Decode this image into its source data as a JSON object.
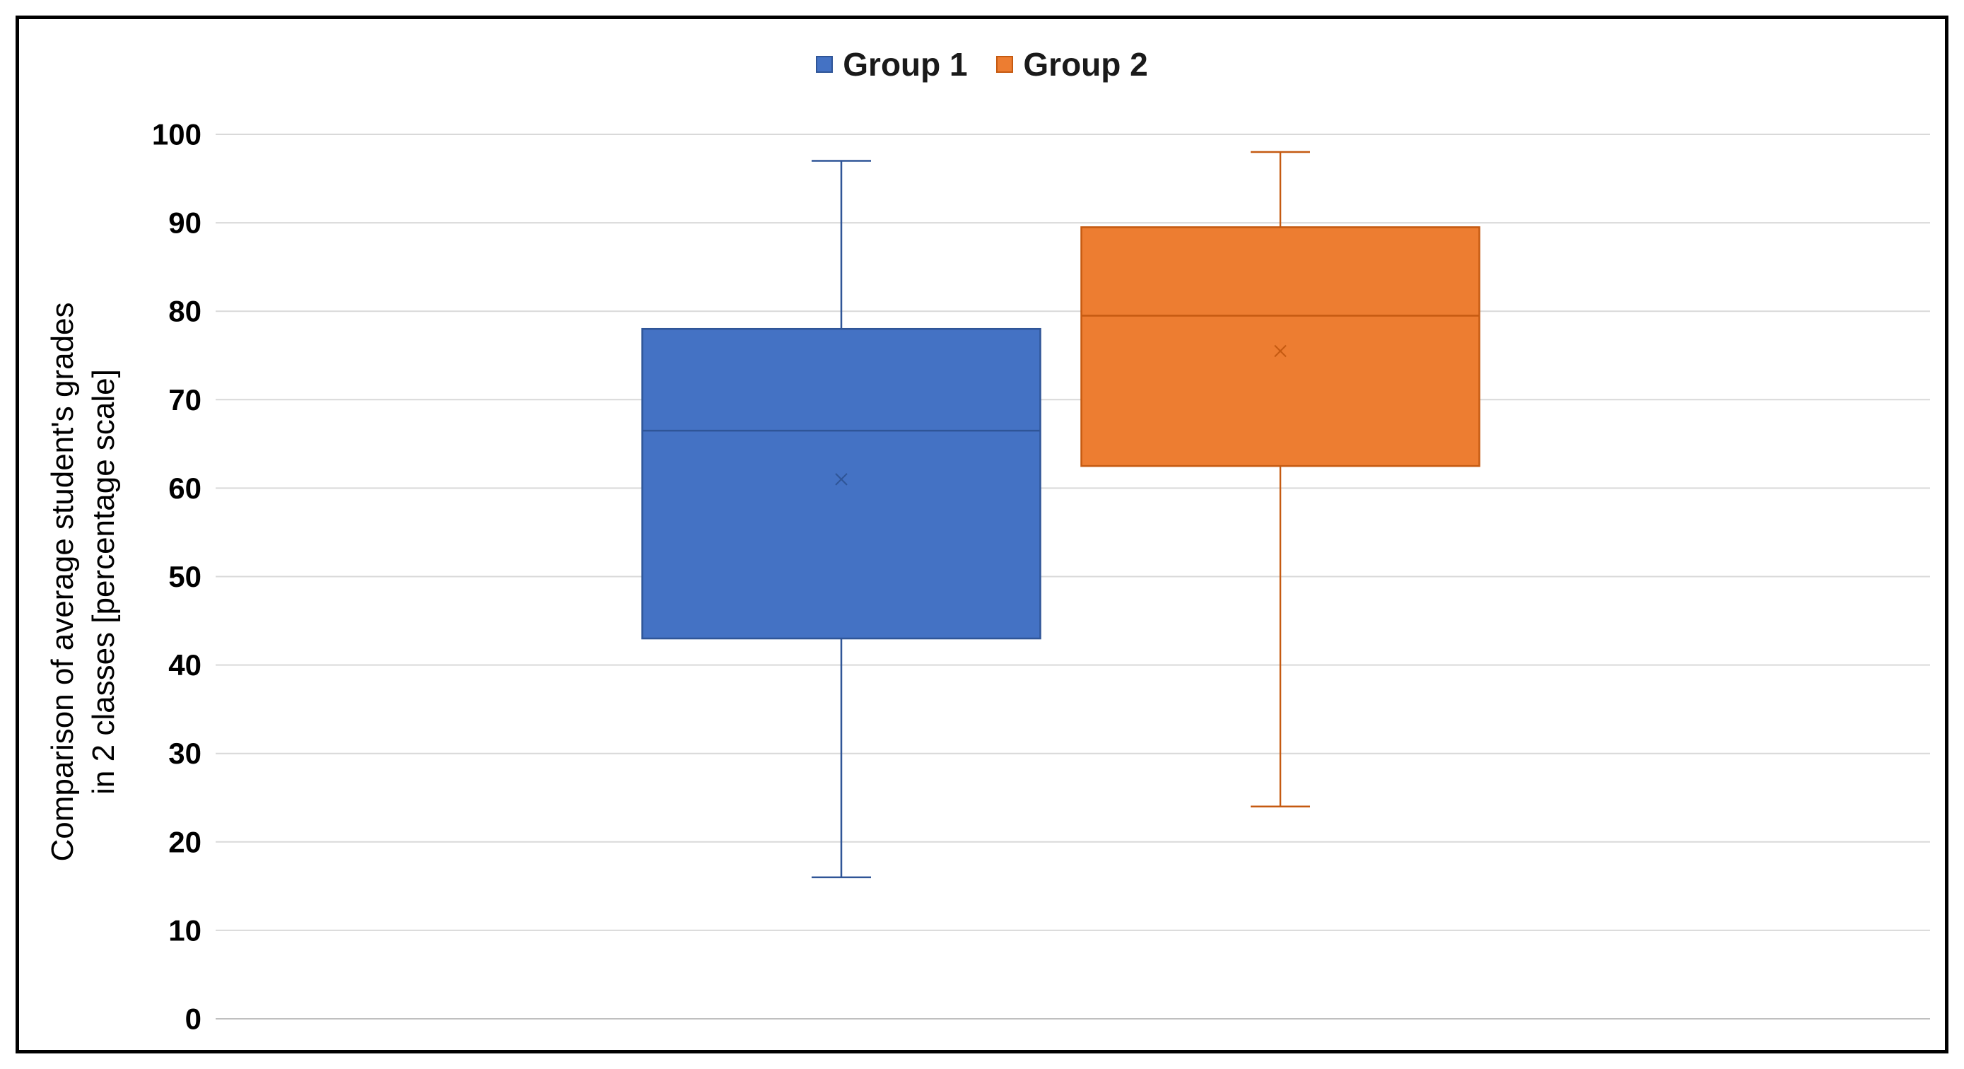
{
  "chart_data": {
    "type": "box",
    "title": "",
    "xlabel": "",
    "ylabel_lines": [
      "Comparison of average student's  grades",
      "in 2 classes [percentage scale]"
    ],
    "ylim": [
      0,
      100
    ],
    "yticks": [
      0,
      10,
      20,
      30,
      40,
      50,
      60,
      70,
      80,
      90,
      100
    ],
    "grid": true,
    "legend_position": "top-center",
    "series": [
      {
        "name": "Group 1",
        "color": "#4472C4",
        "min": 16,
        "q1": 43,
        "median": 66.5,
        "q3": 78,
        "max": 97,
        "mean": 61
      },
      {
        "name": "Group 2",
        "color": "#ED7D31",
        "min": 24,
        "q1": 62.5,
        "median": 79.5,
        "q3": 89.5,
        "max": 98,
        "mean": 75.5
      }
    ]
  }
}
